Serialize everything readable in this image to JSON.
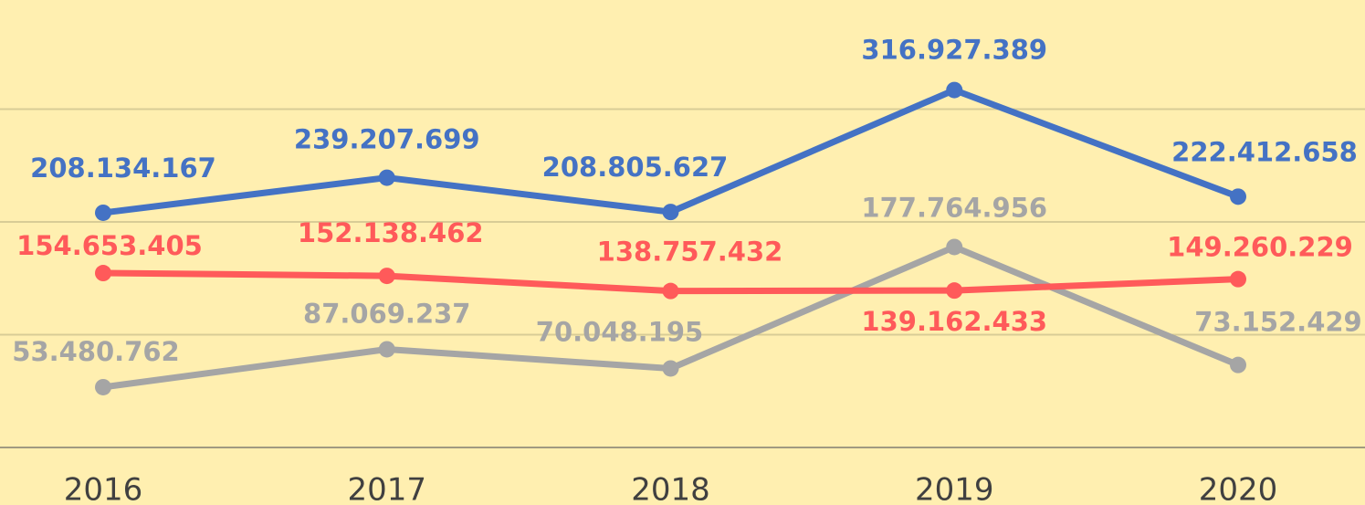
{
  "chart_data": {
    "type": "line",
    "categories": [
      "2016",
      "2017",
      "2018",
      "2019",
      "2020"
    ],
    "series": [
      {
        "color": "#4472c4",
        "values": [
          208134167,
          239207699,
          208805627,
          316927389,
          222412658
        ],
        "value_labels": [
          "208.134.167",
          "239.207.699",
          "208.805.627",
          "316.927.389",
          "222.412.658"
        ]
      },
      {
        "color": "#ff5a5a",
        "values": [
          154653405,
          152138462,
          138757432,
          139162433,
          149260229
        ],
        "value_labels": [
          "154.653.405",
          "152.138.462",
          "138.757.432",
          "139.162.433",
          "149.260.229"
        ]
      },
      {
        "color": "#a5a5a5",
        "values": [
          53480762,
          87069237,
          70048195,
          177764956,
          73152429
        ],
        "value_labels": [
          "53.480.762",
          "87.069.237",
          "70.048.195",
          "177.764.956",
          "73.152.429"
        ]
      }
    ],
    "ylim": [
      0,
      400000000
    ],
    "yticks": [
      0,
      100000000,
      200000000,
      300000000
    ],
    "grid": true
  }
}
